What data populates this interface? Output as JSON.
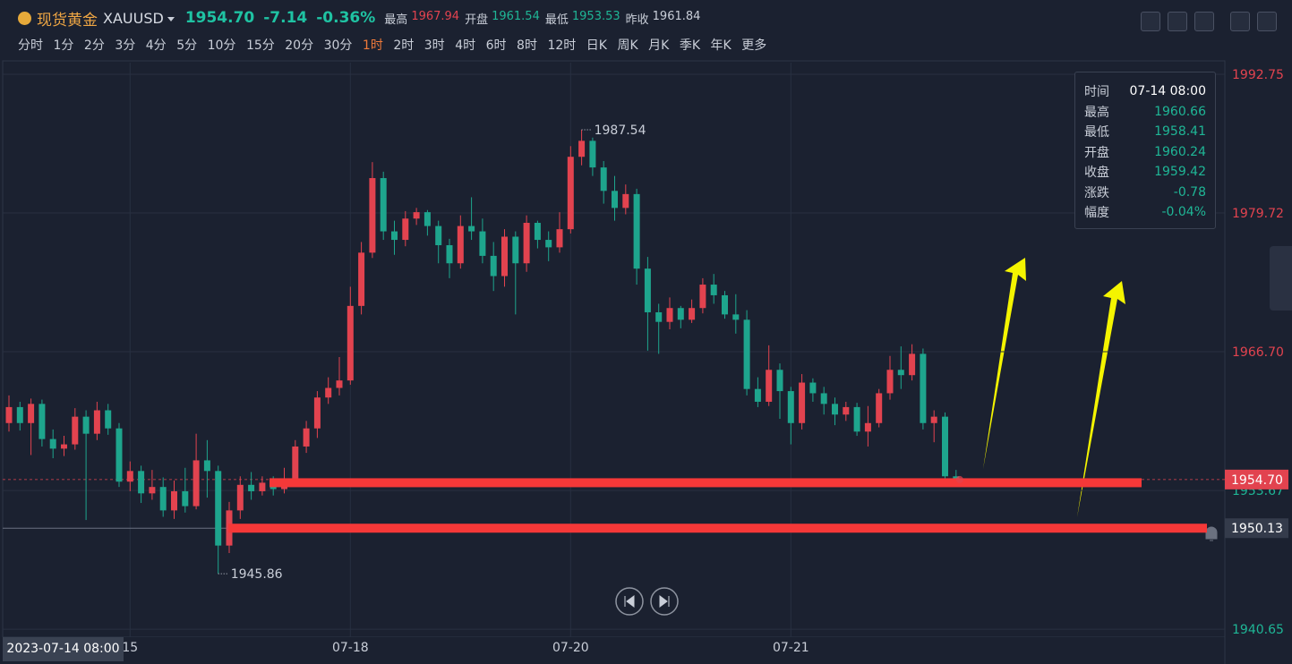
{
  "header": {
    "name": "现货黄金",
    "symbol": "XAUUSD",
    "price": "1954.70",
    "change": "-7.14",
    "change_pct": "-0.36%",
    "stats": [
      {
        "label": "最高",
        "value": "1967.94"
      },
      {
        "label": "开盘",
        "value": "1961.54"
      },
      {
        "label": "最低",
        "value": "1953.53"
      },
      {
        "label": "昨收",
        "value": "1961.84"
      }
    ]
  },
  "timeframes": {
    "items": [
      "分时",
      "1分",
      "2分",
      "3分",
      "4分",
      "5分",
      "10分",
      "15分",
      "20分",
      "30分",
      "1时",
      "2时",
      "3时",
      "4时",
      "6时",
      "8时",
      "12时",
      "日K",
      "周K",
      "月K",
      "季K",
      "年K",
      "更多"
    ],
    "active": "1时"
  },
  "tooltip": {
    "rows": [
      {
        "label": "时间",
        "value": "07-14 08:00"
      },
      {
        "label": "最高",
        "value": "1960.66"
      },
      {
        "label": "最低",
        "value": "1958.41"
      },
      {
        "label": "开盘",
        "value": "1960.24"
      },
      {
        "label": "收盘",
        "value": "1959.42"
      },
      {
        "label": "涨跌",
        "value": "-0.78"
      },
      {
        "label": "幅度",
        "value": "-0.04%"
      }
    ]
  },
  "cursor_date": "2023-07-14 08:00",
  "chart_data": {
    "type": "candlestick",
    "up_color": "#e2434f",
    "down_color": "#1ea58d",
    "grid": true,
    "prev_close": 1961.84,
    "ylim": [
      1939.9,
      1993.84
    ],
    "yticks": [
      {
        "value": 1940.65,
        "label": "1940.65"
      },
      1953.67,
      {
        "value": 1966.7,
        "label": "1966.70"
      },
      1979.72,
      1992.75
    ],
    "categories": [
      null,
      null,
      null,
      null,
      null,
      null,
      null,
      null,
      null,
      null,
      null,
      "15",
      null,
      null,
      null,
      null,
      null,
      null,
      null,
      null,
      null,
      null,
      null,
      null,
      null,
      null,
      null,
      null,
      null,
      null,
      null,
      "07-18",
      null,
      null,
      null,
      null,
      null,
      null,
      null,
      null,
      null,
      null,
      null,
      null,
      null,
      null,
      null,
      null,
      null,
      null,
      null,
      "07-20",
      null,
      null,
      null,
      null,
      null,
      null,
      null,
      null,
      null,
      null,
      null,
      null,
      null,
      null,
      null,
      null,
      null,
      null,
      null,
      "07-21",
      null,
      null,
      null,
      null,
      null,
      null,
      null,
      null,
      null,
      null,
      null,
      null,
      null,
      null,
      null
    ],
    "open": [
      1960.0,
      1961.5,
      1960.0,
      1961.8,
      1958.5,
      1957.6,
      1958.0,
      1960.6,
      1959.0,
      1961.2,
      1959.5,
      1954.5,
      1955.5,
      1953.4,
      1954.0,
      1951.8,
      1953.6,
      1952.2,
      1956.5,
      1955.5,
      1948.5,
      1951.8,
      1954.2,
      1953.6,
      1954.4,
      1953.8,
      1954.6,
      1957.8,
      1959.5,
      1962.4,
      1963.3,
      1964.0,
      1971.0,
      1976.0,
      1983.0,
      1978.0,
      1977.2,
      1979.2,
      1979.8,
      1978.5,
      1976.7,
      1975.0,
      1978.5,
      1978.0,
      1975.7,
      1973.8,
      1977.5,
      1975.0,
      1978.8,
      1977.2,
      1976.5,
      1978.2,
      1985.0,
      1986.5,
      1984.0,
      1981.8,
      1980.2,
      1981.5,
      1974.5,
      1970.4,
      1969.5,
      1970.8,
      1969.7,
      1970.8,
      1973.0,
      1972.0,
      1970.2,
      1969.7,
      1963.2,
      1962.0,
      1965.0,
      1963.0,
      1960.0,
      1963.8,
      1962.8,
      1961.8,
      1960.8,
      1961.5,
      1959.2,
      1960.0,
      1962.8,
      1965.0,
      1964.5,
      1966.5,
      1960.0,
      1960.6,
      1955.0
    ],
    "high": [
      1962.6,
      1962.0,
      1962.3,
      1962.2,
      1959.4,
      1958.8,
      1961.4,
      1961.2,
      1962.0,
      1961.8,
      1960.0,
      1956.4,
      1956.0,
      1955.6,
      1954.9,
      1954.6,
      1955.8,
      1959.0,
      1958.4,
      1956.0,
      1952.6,
      1955.0,
      1955.4,
      1955.0,
      1955.0,
      1955.8,
      1958.4,
      1960.2,
      1963.0,
      1964.3,
      1966.2,
      1972.8,
      1977.0,
      1984.5,
      1983.6,
      1979.0,
      1979.9,
      1980.2,
      1980.0,
      1979.0,
      1977.3,
      1979.5,
      1981.2,
      1979.2,
      1977.0,
      1978.2,
      1978.0,
      1979.5,
      1979.0,
      1978.0,
      1979.8,
      1986.0,
      1987.54,
      1986.8,
      1984.6,
      1983.2,
      1982.4,
      1982.0,
      1975.6,
      1971.2,
      1971.8,
      1971.0,
      1971.6,
      1973.6,
      1974.0,
      1972.4,
      1972.1,
      1970.6,
      1964.3,
      1967.3,
      1965.6,
      1963.4,
      1964.6,
      1964.2,
      1963.4,
      1962.4,
      1962.0,
      1961.9,
      1961.6,
      1963.2,
      1966.3,
      1967.2,
      1967.4,
      1967.0,
      1961.2,
      1961.0,
      1955.6
    ],
    "low": [
      1959.2,
      1959.3,
      1957.0,
      1957.8,
      1956.7,
      1956.9,
      1957.5,
      1950.9,
      1958.4,
      1958.9,
      1954.0,
      1953.6,
      1952.5,
      1952.8,
      1951.2,
      1951.0,
      1951.6,
      1951.9,
      1953.0,
      1945.86,
      1947.8,
      1951.0,
      1952.8,
      1953.2,
      1953.2,
      1953.4,
      1954.2,
      1957.2,
      1958.6,
      1961.8,
      1962.6,
      1963.6,
      1970.2,
      1975.5,
      1977.2,
      1975.8,
      1976.6,
      1978.6,
      1977.6,
      1975.0,
      1973.6,
      1974.5,
      1977.2,
      1975.0,
      1972.4,
      1972.8,
      1970.2,
      1974.2,
      1976.4,
      1975.2,
      1976.0,
      1977.8,
      1984.2,
      1983.2,
      1980.6,
      1979.0,
      1979.6,
      1973.0,
      1966.8,
      1966.5,
      1968.8,
      1968.9,
      1969.4,
      1970.3,
      1971.2,
      1969.8,
      1968.4,
      1962.6,
      1961.5,
      1961.6,
      1960.4,
      1958.0,
      1959.4,
      1962.0,
      1960.8,
      1959.8,
      1960.2,
      1958.8,
      1957.8,
      1959.6,
      1962.2,
      1963.2,
      1964.0,
      1959.4,
      1958.2,
      1954.2,
      1954.2
    ],
    "close": [
      1961.5,
      1960.0,
      1961.8,
      1958.5,
      1957.6,
      1958.0,
      1960.6,
      1959.0,
      1961.2,
      1959.5,
      1954.5,
      1955.5,
      1953.4,
      1954.0,
      1951.8,
      1953.6,
      1952.2,
      1956.5,
      1955.5,
      1948.5,
      1951.8,
      1954.2,
      1953.6,
      1954.4,
      1953.8,
      1954.6,
      1957.8,
      1959.5,
      1962.4,
      1963.3,
      1964.0,
      1971.0,
      1976.0,
      1983.0,
      1978.0,
      1977.2,
      1979.2,
      1979.8,
      1978.5,
      1976.7,
      1975.0,
      1978.5,
      1978.0,
      1975.7,
      1973.8,
      1977.5,
      1975.0,
      1978.8,
      1977.2,
      1976.5,
      1978.2,
      1985.0,
      1986.5,
      1984.0,
      1981.8,
      1980.2,
      1981.5,
      1974.5,
      1970.4,
      1969.5,
      1970.8,
      1969.7,
      1970.8,
      1973.0,
      1972.0,
      1970.2,
      1969.7,
      1963.2,
      1962.0,
      1965.0,
      1963.0,
      1960.0,
      1963.8,
      1962.8,
      1961.8,
      1960.8,
      1961.5,
      1959.2,
      1960.0,
      1962.8,
      1965.0,
      1964.5,
      1966.5,
      1960.0,
      1960.6,
      1955.0,
      1954.7
    ],
    "price_line": {
      "value": 1954.7,
      "label": "1954.70"
    },
    "alert_line": {
      "value": 1950.13,
      "label": "1950.13"
    },
    "drawn_line": 1954.4
  }
}
